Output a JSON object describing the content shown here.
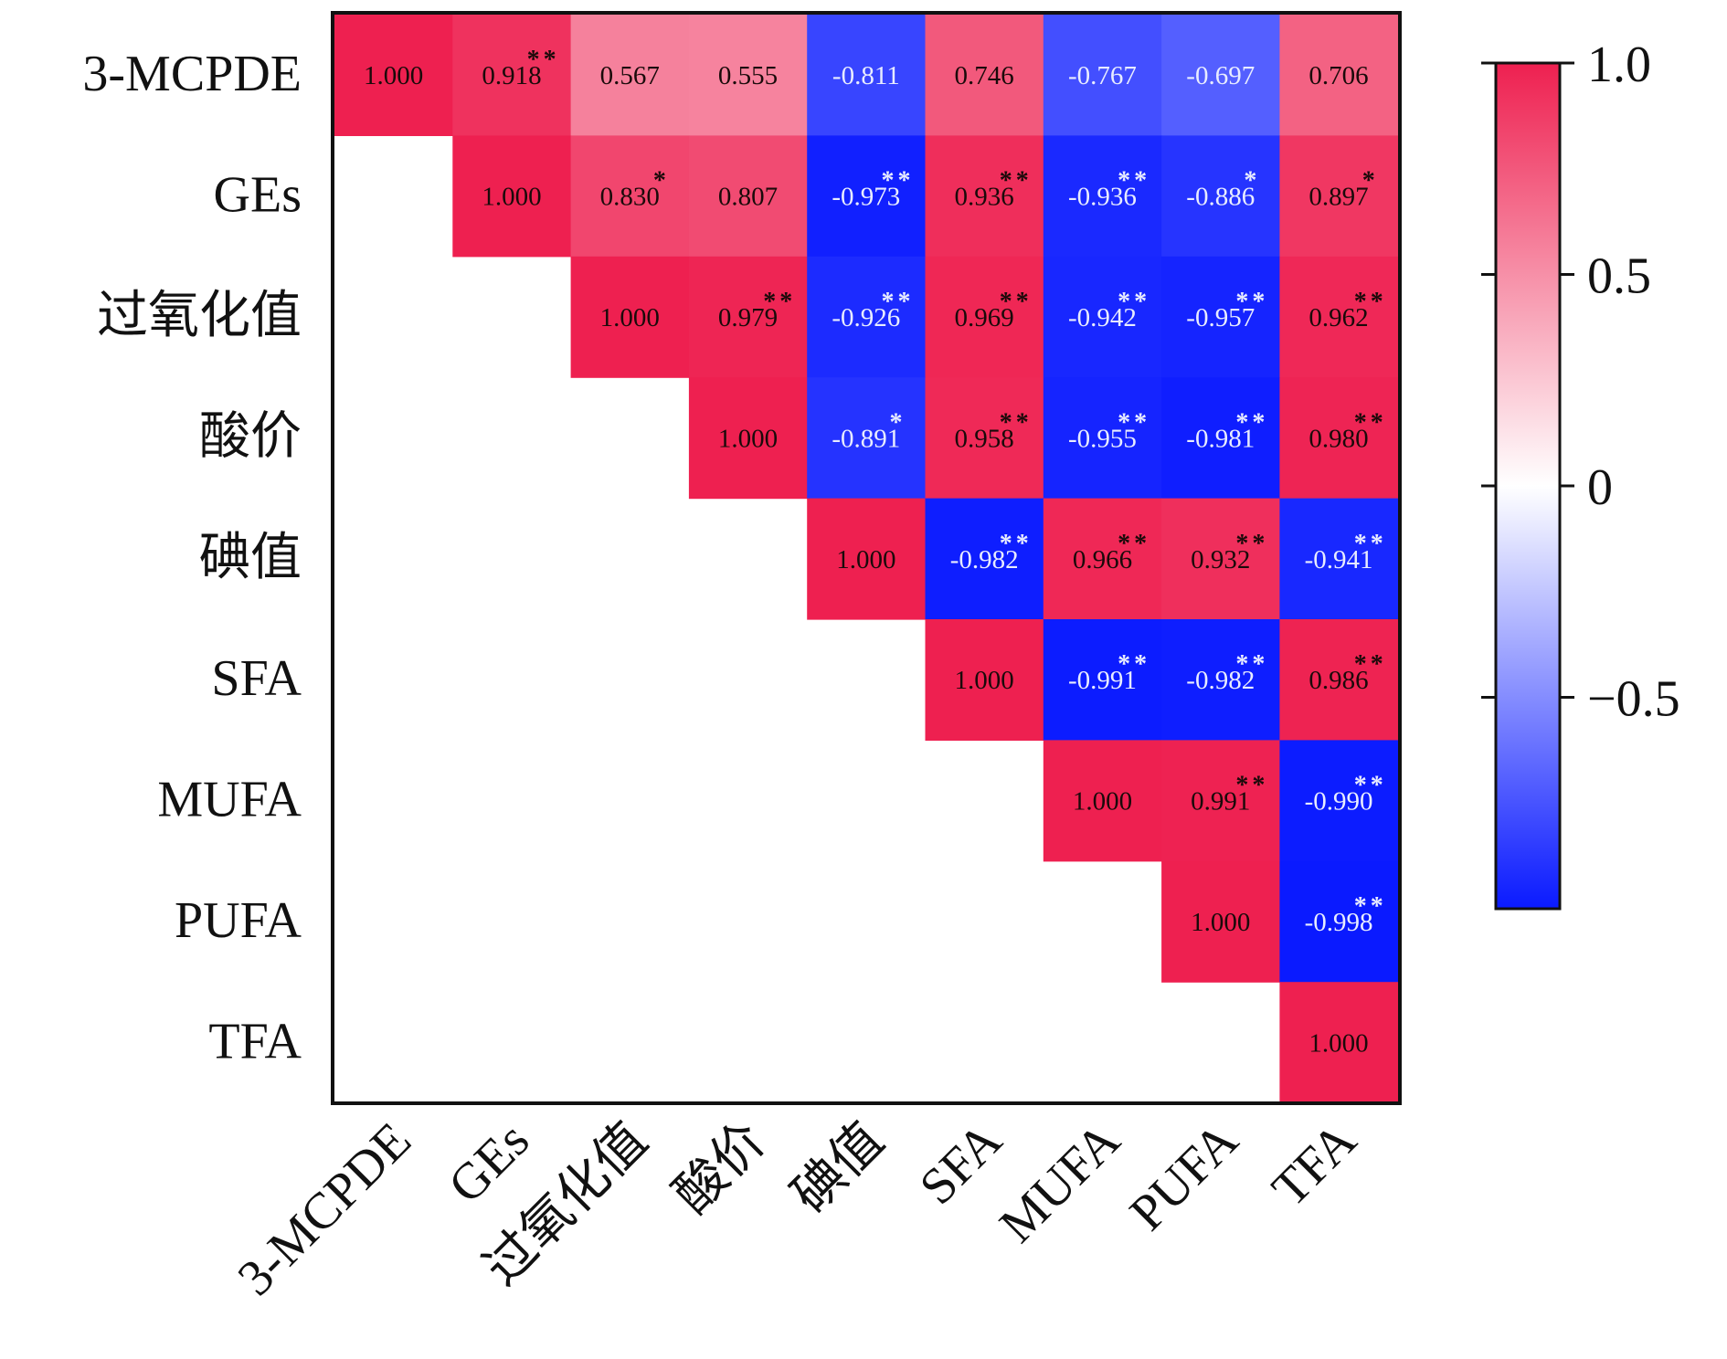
{
  "chart_data": {
    "type": "heatmap",
    "title": "",
    "labels": [
      "3-MCPDE",
      "GEs",
      "过氧化值",
      "酸价",
      "碘值",
      "SFA",
      "MUFA",
      "PUFA",
      "TFA"
    ],
    "matrix": [
      [
        1.0,
        0.918,
        0.567,
        0.555,
        -0.811,
        0.746,
        -0.767,
        -0.697,
        0.706
      ],
      [
        null,
        1.0,
        0.83,
        0.807,
        -0.973,
        0.936,
        -0.936,
        -0.886,
        0.897
      ],
      [
        null,
        null,
        1.0,
        0.979,
        -0.926,
        0.969,
        -0.942,
        -0.957,
        0.962
      ],
      [
        null,
        null,
        null,
        1.0,
        -0.891,
        0.958,
        -0.955,
        -0.981,
        0.98
      ],
      [
        null,
        null,
        null,
        null,
        1.0,
        -0.982,
        0.966,
        0.932,
        -0.941
      ],
      [
        null,
        null,
        null,
        null,
        null,
        1.0,
        -0.991,
        -0.982,
        0.986
      ],
      [
        null,
        null,
        null,
        null,
        null,
        null,
        1.0,
        0.991,
        -0.99
      ],
      [
        null,
        null,
        null,
        null,
        null,
        null,
        null,
        1.0,
        -0.998
      ],
      [
        null,
        null,
        null,
        null,
        null,
        null,
        null,
        null,
        1.0
      ]
    ],
    "display": [
      [
        "1.000",
        "0.918",
        "0.567",
        "0.555",
        "-0.811",
        "0.746",
        "-0.767",
        "-0.697",
        "0.706"
      ],
      [
        "",
        "1.000",
        "0.830",
        "0.807",
        "-0.973",
        "0.936",
        "-0.936",
        "-0.886",
        "0.897"
      ],
      [
        "",
        "",
        "1.000",
        "0.979",
        "-0.926",
        "0.969",
        "-0.942",
        "-0.957",
        "0.962"
      ],
      [
        "",
        "",
        "",
        "1.000",
        "-0.891",
        "0.958",
        "-0.955",
        "-0.981",
        "0.980"
      ],
      [
        "",
        "",
        "",
        "",
        "1.000",
        "-0.982",
        "0.966",
        "0.932",
        "-0.941"
      ],
      [
        "",
        "",
        "",
        "",
        "",
        "1.000",
        "-0.991",
        "-0.982",
        "0.986"
      ],
      [
        "",
        "",
        "",
        "",
        "",
        "",
        "1.000",
        "0.991",
        "-0.990"
      ],
      [
        "",
        "",
        "",
        "",
        "",
        "",
        "",
        "1.000",
        "-0.998"
      ],
      [
        "",
        "",
        "",
        "",
        "",
        "",
        "",
        "",
        "1.000"
      ]
    ],
    "significance": [
      [
        "",
        "**",
        "",
        "",
        "",
        "",
        "",
        "",
        ""
      ],
      [
        "",
        "",
        "*",
        "",
        "**",
        "**",
        "**",
        "*",
        "*"
      ],
      [
        "",
        "",
        "",
        "**",
        "**",
        "**",
        "**",
        "**",
        "**"
      ],
      [
        "",
        "",
        "",
        "",
        "*",
        "**",
        "**",
        "**",
        "**"
      ],
      [
        "",
        "",
        "",
        "",
        "",
        "**",
        "**",
        "**",
        "**"
      ],
      [
        "",
        "",
        "",
        "",
        "",
        "",
        "**",
        "**",
        "**"
      ],
      [
        "",
        "",
        "",
        "",
        "",
        "",
        "",
        "**",
        "**"
      ],
      [
        "",
        "",
        "",
        "",
        "",
        "",
        "",
        "",
        "**"
      ],
      [
        "",
        "",
        "",
        "",
        "",
        "",
        "",
        "",
        ""
      ]
    ],
    "colorbar": {
      "min": -1.0,
      "max": 1.0,
      "ticks": [
        {
          "value": 1.0,
          "label": "1.0"
        },
        {
          "value": 0.5,
          "label": "0.5"
        },
        {
          "value": 0.0,
          "label": "0"
        },
        {
          "value": -0.5,
          "label": "−0.5"
        }
      ],
      "colors": {
        "negative": "#0a1aff",
        "zero": "#ffffff",
        "positive": "#ee2050"
      }
    }
  }
}
